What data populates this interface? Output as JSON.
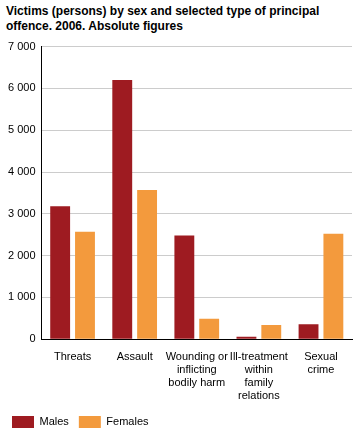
{
  "chart_data": {
    "type": "bar",
    "title": "Victims (persons) by sex and selected type of principal offence. 2006. Absolute figures",
    "categories": [
      "Threats",
      "Assault",
      "Wounding or inflicting bodily harm",
      "Ill-treatment within family relations",
      "Sexual crime"
    ],
    "series": [
      {
        "name": "Males",
        "color": "#9e1b21",
        "values": [
          3180,
          6200,
          2480,
          60,
          360
        ]
      },
      {
        "name": "Females",
        "color": "#f39a3d",
        "values": [
          2570,
          3570,
          490,
          340,
          2520
        ]
      }
    ],
    "ylim": [
      0,
      7000
    ],
    "yticks": [
      0,
      {
        "value": 1000,
        "label": "1 000"
      },
      {
        "value": 2000,
        "label": "2 000"
      },
      {
        "value": 3000,
        "label": "3 000"
      },
      {
        "value": 4000,
        "label": "4 000"
      },
      {
        "value": 5000,
        "label": "5 000"
      },
      {
        "value": 6000,
        "label": "6 000"
      },
      {
        "value": 7000,
        "label": "7 000"
      }
    ],
    "grid": true,
    "legend": "bottom"
  }
}
